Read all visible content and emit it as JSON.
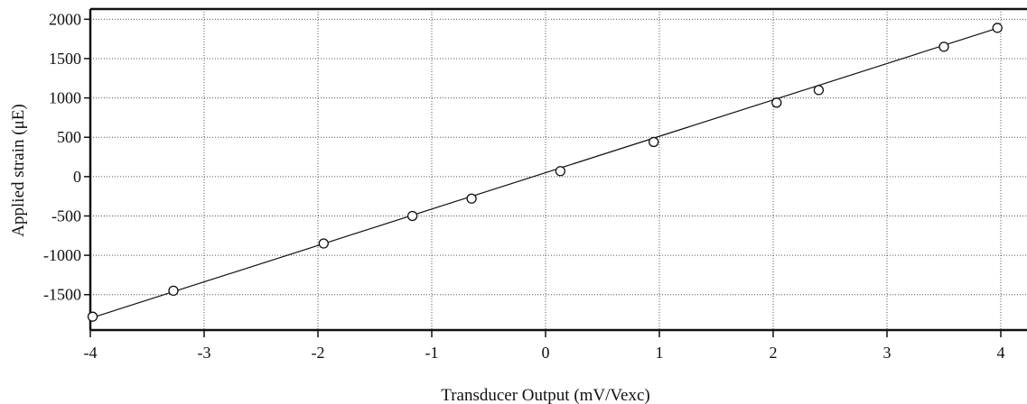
{
  "chart_data": {
    "type": "scatter",
    "xlabel": "Transducer Output (mV/Vexc)",
    "ylabel": "Applied strain (μE)",
    "xlim": [
      -4,
      4
    ],
    "ylim": [
      -1950,
      2130
    ],
    "xticks": [
      -4,
      -3,
      -2,
      -1,
      0,
      1,
      2,
      3,
      4
    ],
    "xtick_labels": [
      "-4",
      "-3",
      "-2",
      "-1",
      "0",
      "1",
      "2",
      "3",
      "4"
    ],
    "yticks": [
      -1500,
      -1000,
      -500,
      0,
      500,
      1000,
      1500,
      2000
    ],
    "ytick_labels": [
      "-1500",
      "-1000",
      "-500",
      "0",
      "500",
      "1000",
      "1500",
      "2000"
    ],
    "grid": true,
    "series": [
      {
        "kind": "points",
        "marker": "open-circle",
        "x": [
          -3.98,
          -3.27,
          -1.95,
          -1.17,
          -0.65,
          0.13,
          0.95,
          2.03,
          2.4,
          3.5,
          3.97
        ],
        "y": [
          -1780,
          -1450,
          -850,
          -500,
          -280,
          70,
          440,
          940,
          1100,
          1650,
          1890
        ]
      },
      {
        "kind": "fit-line",
        "x": [
          -4.0,
          4.0
        ],
        "y": [
          -1800,
          1900
        ]
      }
    ],
    "colors": {
      "axis": "#111111",
      "grid": "#555555",
      "marker": "#111111",
      "line": "#111111"
    }
  }
}
